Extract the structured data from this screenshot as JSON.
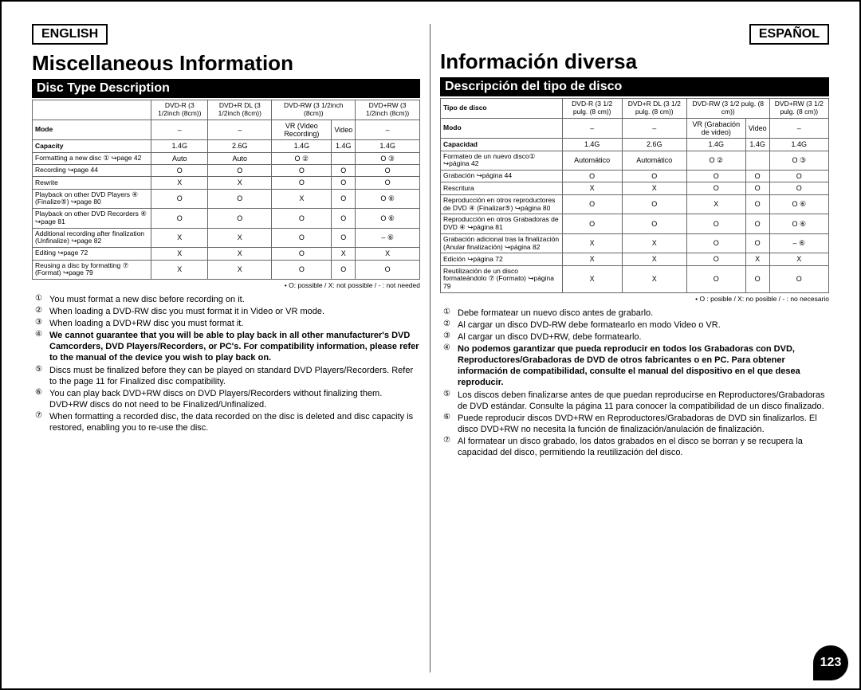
{
  "page_number": "123",
  "en": {
    "lang_label": "ENGLISH",
    "title": "Miscellaneous Information",
    "subheader": "Disc Type Description",
    "table": {
      "col_headers": [
        "DVD-R\n(3 1/2inch (8cm))",
        "DVD+R DL\n(3 1/2inch (8cm))",
        "DVD-RW (3 1/2inch (8cm))",
        "",
        "DVD+RW\n(3 1/2inch (8cm))"
      ],
      "mode_row": [
        "Mode",
        "–",
        "–",
        "VR (Video Recording)",
        "Video",
        "–"
      ],
      "rows": [
        [
          "Capacity",
          "1.4G",
          "2.6G",
          "1.4G",
          "1.4G",
          "1.4G"
        ],
        [
          "Formatting a new disc ①\n↪page 42",
          "Auto",
          "Auto",
          "O ②",
          "",
          "O ③"
        ],
        [
          "Recording ↪page 44",
          "O",
          "O",
          "O",
          "O",
          "O"
        ],
        [
          "Rewrite",
          "X",
          "X",
          "O",
          "O",
          "O"
        ],
        [
          "Playback on other DVD Players ④\n(Finalize⑤) ↪page 80",
          "O",
          "O",
          "X",
          "O",
          "O ⑥"
        ],
        [
          "Playback on other DVD Recorders ④ ↪page 81",
          "O",
          "O",
          "O",
          "O",
          "O ⑥"
        ],
        [
          "Additional recording after finalization (Unfinalize)\n↪page 82",
          "X",
          "X",
          "O",
          "O",
          "– ⑥"
        ],
        [
          "Editing ↪page 72",
          "X",
          "X",
          "O",
          "X",
          "X"
        ],
        [
          "Reusing a disc by formatting ⑦ (Format)\n↪page 79",
          "X",
          "X",
          "O",
          "O",
          "O"
        ]
      ],
      "legend": "• O: possible / X: not possible / - : not needed"
    },
    "notes": [
      {
        "n": "①",
        "t": "You must format a new disc before recording on it."
      },
      {
        "n": "②",
        "t": "When loading a DVD-RW disc you must format it in Video or VR mode."
      },
      {
        "n": "③",
        "t": "When loading a DVD+RW disc you must format it."
      },
      {
        "n": "④",
        "t": "We cannot guarantee that you will be able to play back in all other manufacturer's DVD Camcorders, DVD Players/Recorders, or PC's. For compatibility information, please refer to the manual of the device you wish to play back on.",
        "bold": true
      },
      {
        "n": "⑤",
        "t": "Discs must be finalized before they can be played on standard DVD Players/Recorders.\nRefer to the page 11 for Finalized disc compatibility."
      },
      {
        "n": "⑥",
        "t": "You can play back DVD+RW discs on DVD Players/Recorders without finalizing them.\nDVD+RW discs do not need to be Finalized/Unfinalized."
      },
      {
        "n": "⑦",
        "t": "When formatting a recorded disc, the data recorded on the disc is deleted and disc capacity is restored, enabling you to re-use the disc."
      }
    ]
  },
  "es": {
    "lang_label": "ESPAÑOL",
    "title": "Información diversa",
    "subheader": "Descripción del tipo de disco",
    "table": {
      "row0_label": "Tipo de disco",
      "col_headers": [
        "DVD-R\n(3 1/2 pulg. (8 cm))",
        "DVD+R DL\n(3 1/2 pulg. (8 cm))",
        "DVD-RW (3 1/2 pulg. (8 cm))",
        "",
        "DVD+RW\n(3 1/2 pulg. (8 cm))"
      ],
      "mode_row": [
        "Modo",
        "–",
        "–",
        "VR (Grabación de video)",
        "Video",
        "–"
      ],
      "rows": [
        [
          "Capacidad",
          "1.4G",
          "2.6G",
          "1.4G",
          "1.4G",
          "1.4G"
        ],
        [
          "Formateo de un nuevo disco① ↪página 42",
          "Automático",
          "Automático",
          "O ②",
          "",
          "O ③"
        ],
        [
          "Grabación ↪página 44",
          "O",
          "O",
          "O",
          "O",
          "O"
        ],
        [
          "Rescritura",
          "X",
          "X",
          "O",
          "O",
          "O"
        ],
        [
          "Reproducción en otros reproductores de DVD ④\n(Finalizar⑤) ↪página 80",
          "O",
          "O",
          "X",
          "O",
          "O ⑥"
        ],
        [
          "Reproducción en otros Grabadoras de DVD ④\n↪página 81",
          "O",
          "O",
          "O",
          "O",
          "O ⑥"
        ],
        [
          "Grabación adicional tras la finalización (Anular finalización) ↪página 82",
          "X",
          "X",
          "O",
          "O",
          "– ⑥"
        ],
        [
          "Edición ↪página 72",
          "X",
          "X",
          "O",
          "X",
          "X"
        ],
        [
          "Reutilización de un disco formateándolo ⑦\n(Formato) ↪página 79",
          "X",
          "X",
          "O",
          "O",
          "O"
        ]
      ],
      "legend": "• O : posible / X: no posible / - : no necesario"
    },
    "notes": [
      {
        "n": "①",
        "t": "Debe formatear un nuevo disco antes de grabarlo."
      },
      {
        "n": "②",
        "t": "Al cargar un disco DVD-RW debe formatearlo en modo Video o VR."
      },
      {
        "n": "③",
        "t": "Al cargar un disco DVD+RW, debe formatearlo."
      },
      {
        "n": "④",
        "t": "No podemos garantizar que pueda reproducir en todos los Grabadoras con DVD, Reproductores/Grabadoras de DVD de otros fabricantes o en PC. Para obtener información de compatibilidad, consulte el manual del dispositivo en el que desea reproducir.",
        "bold": true
      },
      {
        "n": "⑤",
        "t": "Los discos deben finalizarse antes de que puedan reproducirse en Reproductores/Grabadoras de DVD estándar.\nConsulte la página 11 para conocer la compatibilidad de un disco finalizado."
      },
      {
        "n": "⑥",
        "t": "Puede reproducir discos DVD+RW en Reproductores/Grabadoras de DVD sin finalizarlos.\nEl disco DVD+RW no necesita la función de finalización/anulación de finalización."
      },
      {
        "n": "⑦",
        "t": "Al formatear un disco grabado, los datos grabados en el disco se borran y se recupera la capacidad del disco, permitiendo la reutilización del disco."
      }
    ]
  }
}
